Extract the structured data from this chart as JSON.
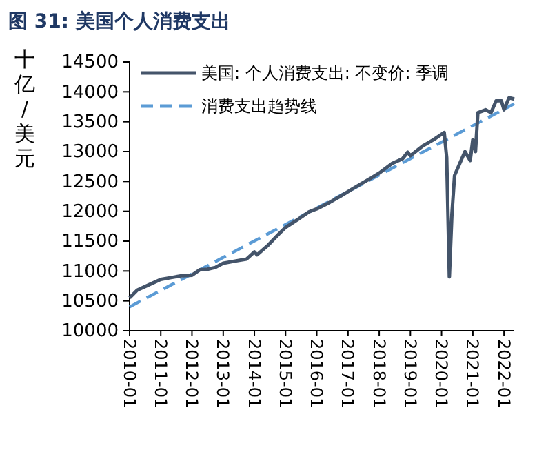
{
  "chart_data": {
    "type": "line",
    "title": "图 31:  美国个人消费支出",
    "ylabel": "十亿/美元",
    "xlim": [
      "2010-01",
      "2022-05"
    ],
    "xticks": [
      {
        "value": "2010-01",
        "label": "2010-01"
      },
      {
        "value": "2011-01",
        "label": "2011-01"
      },
      {
        "value": "2012-01",
        "label": "2012-01"
      },
      {
        "value": "2013-01",
        "label": "2013-01"
      },
      {
        "value": "2014-01",
        "label": "2014-01"
      },
      {
        "value": "2015-01",
        "label": "2015-01"
      },
      {
        "value": "2016-01",
        "label": "2016-01"
      },
      {
        "value": "2017-01",
        "label": "2017-01"
      },
      {
        "value": "2018-01",
        "label": "2018-01"
      },
      {
        "value": "2019-01",
        "label": "2019-01"
      },
      {
        "value": "2020-01",
        "label": "2020-01"
      },
      {
        "value": "2021-01",
        "label": "2021-01"
      },
      {
        "value": "2022-01",
        "label": "2022-01"
      }
    ],
    "ylim": [
      10000,
      14500
    ],
    "yticks": [
      10000,
      10500,
      11000,
      11500,
      12000,
      12500,
      13000,
      13500,
      14000,
      14500
    ],
    "grid": false,
    "legend": "top left",
    "marker": "none",
    "series": [
      {
        "name": "美国: 个人消费支出: 不变价: 季调",
        "color": "#44546a",
        "line_style": "solid",
        "x": [
          "2010-01",
          "2010-04",
          "2010-08",
          "2011-01",
          "2011-05",
          "2011-09",
          "2012-01",
          "2012-04",
          "2012-07",
          "2012-10",
          "2013-01",
          "2013-06",
          "2013-10",
          "2014-01",
          "2014-02",
          "2014-06",
          "2014-10",
          "2015-01",
          "2015-06",
          "2015-10",
          "2016-01",
          "2016-06",
          "2016-10",
          "2017-01",
          "2017-06",
          "2017-10",
          "2018-01",
          "2018-06",
          "2018-10",
          "2018-12",
          "2019-01",
          "2019-06",
          "2019-10",
          "2020-02",
          "2020-03",
          "2020-04",
          "2020-05",
          "2020-06",
          "2020-08",
          "2020-10",
          "2020-12",
          "2021-01",
          "2021-02",
          "2021-03",
          "2021-06",
          "2021-08",
          "2021-10",
          "2021-12",
          "2022-01",
          "2022-03",
          "2022-05"
        ],
        "values": [
          10550,
          10680,
          10760,
          10860,
          10890,
          10920,
          10930,
          11020,
          11030,
          11060,
          11130,
          11170,
          11200,
          11320,
          11270,
          11420,
          11600,
          11730,
          11870,
          11990,
          12040,
          12150,
          12250,
          12330,
          12460,
          12560,
          12640,
          12800,
          12880,
          12990,
          12930,
          13100,
          13200,
          13320,
          12900,
          10900,
          11950,
          12600,
          12800,
          13000,
          12850,
          13200,
          13000,
          13650,
          13700,
          13650,
          13850,
          13850,
          13700,
          13900,
          13880
        ]
      },
      {
        "name": "消费支出趋势线",
        "color": "#5b9bd5",
        "line_style": "dashed",
        "x": [
          "2010-01",
          "2022-05"
        ],
        "values": [
          10400,
          13800
        ]
      }
    ]
  }
}
